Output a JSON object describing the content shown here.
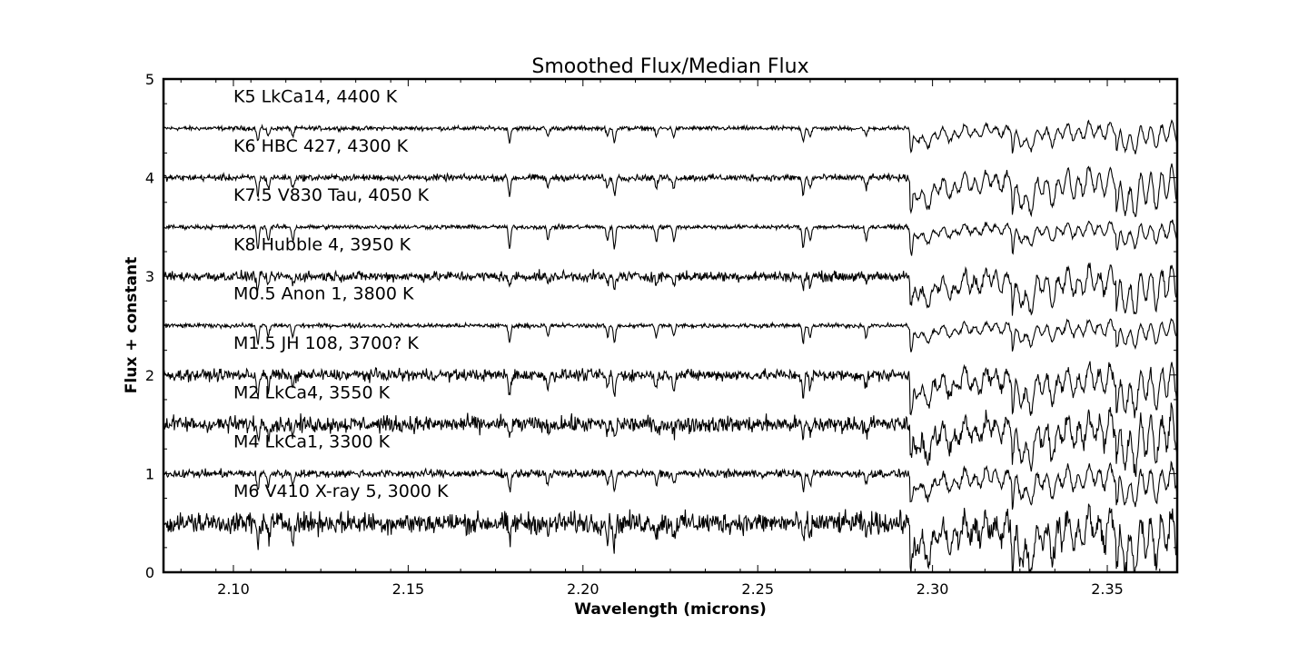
{
  "chart_data": {
    "type": "line",
    "title": "Smoothed Flux/Median Flux",
    "xlabel": "Wavelength (microns)",
    "ylabel": "Flux + constant",
    "xlim": [
      2.08,
      2.37
    ],
    "ylim": [
      0,
      5
    ],
    "x_ticks": [
      "2.10",
      "2.15",
      "2.20",
      "2.25",
      "2.30",
      "2.35"
    ],
    "y_ticks": [
      "0",
      "1",
      "2",
      "3",
      "4",
      "5"
    ],
    "grid": false,
    "legend": "none (inline labels above each spectrum)",
    "line_color": "#000000",
    "absorption_features_microns": [
      2.107,
      2.11,
      2.117,
      2.179,
      2.19,
      2.207,
      2.209,
      2.221,
      2.226,
      2.263,
      2.265,
      2.281,
      2.294,
      2.323,
      2.353
    ],
    "series": [
      {
        "name": "K5 LkCa14, 4400 K",
        "offset": 4.5,
        "noise": 0.012,
        "band_depth": 0.18
      },
      {
        "name": "K6 HBC 427, 4300 K",
        "offset": 4.0,
        "noise": 0.018,
        "band_depth": 0.3
      },
      {
        "name": "K7.5 V830 Tau, 4050 K",
        "offset": 3.5,
        "noise": 0.012,
        "band_depth": 0.15
      },
      {
        "name": "K8 Hubble 4, 3950 K",
        "offset": 3.0,
        "noise": 0.028,
        "band_depth": 0.3
      },
      {
        "name": "M0.5 Anon 1, 3800 K",
        "offset": 2.5,
        "noise": 0.012,
        "band_depth": 0.16
      },
      {
        "name": "M1.5 JH 108, 3700? K",
        "offset": 2.0,
        "noise": 0.032,
        "band_depth": 0.3
      },
      {
        "name": "M2 LkCa4, 3550 K",
        "offset": 1.5,
        "noise": 0.045,
        "band_depth": 0.35
      },
      {
        "name": "M4 LkCa1, 3300 K",
        "offset": 1.0,
        "noise": 0.022,
        "band_depth": 0.25
      },
      {
        "name": "M6 V410 X-ray 5, 3000 K",
        "offset": 0.5,
        "noise": 0.06,
        "band_depth": 0.4
      }
    ]
  }
}
